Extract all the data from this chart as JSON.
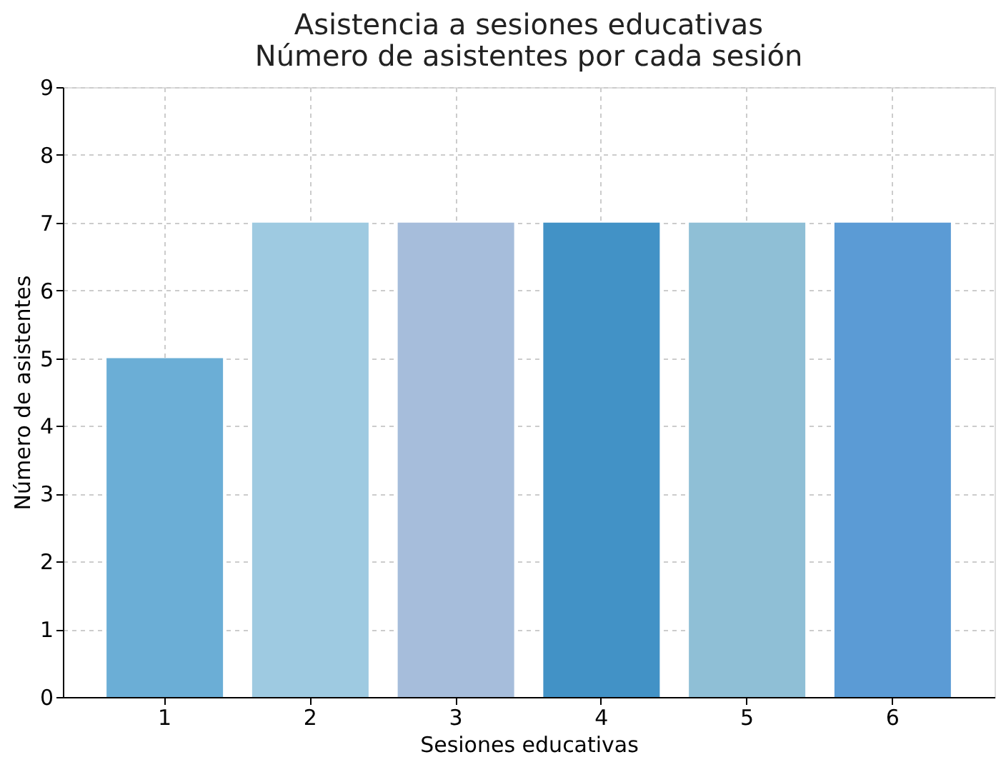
{
  "chart_data": {
    "type": "bar",
    "title": [
      "Asistencia a sesiones educativas",
      "Número de asistentes por cada sesión"
    ],
    "xlabel": "Sesiones educativas",
    "ylabel": "Número de asistentes",
    "categories": [
      "1",
      "2",
      "3",
      "4",
      "5",
      "6"
    ],
    "values": [
      5,
      7,
      7,
      7,
      7,
      7
    ],
    "colors": [
      "#6baed6",
      "#9ecae1",
      "#a6bddb",
      "#4292c6",
      "#8fbfd6",
      "#5b9bd5"
    ],
    "ylim": [
      0,
      9
    ],
    "yticks": [
      0,
      1,
      2,
      3,
      4,
      5,
      6,
      7,
      8,
      9
    ],
    "grid": true
  }
}
